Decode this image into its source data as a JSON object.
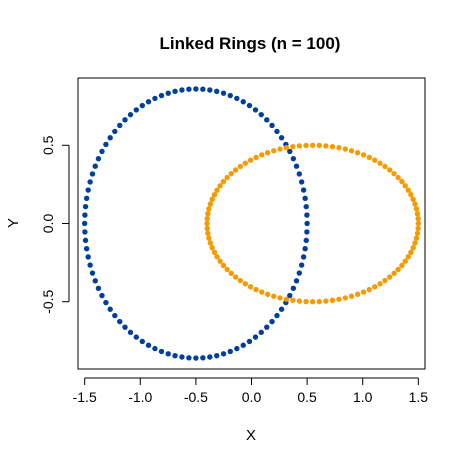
{
  "chart_data": {
    "type": "scatter",
    "title": "Linked Rings (n = 100)",
    "xlabel": "X",
    "ylabel": "Y",
    "xlim": [
      -1.56,
      1.56
    ],
    "ylim": [
      -0.93,
      0.93
    ],
    "x_ticks": [
      -1.5,
      -1.0,
      -0.5,
      0.0,
      0.5,
      1.0,
      1.5
    ],
    "x_tick_labels": [
      "-1.5",
      "-1.0",
      "-0.5",
      "0.0",
      "0.5",
      "1.0",
      "1.5"
    ],
    "y_ticks": [
      -0.5,
      0.0,
      0.5
    ],
    "y_tick_labels": [
      "-0.5",
      "0.0",
      "0.5"
    ],
    "grid": false,
    "legend": "none",
    "series": [
      {
        "color": "#003f9a",
        "points_per_ring": 100,
        "shape": "ellipse",
        "center": [
          -0.5,
          0.0
        ],
        "x_radius": 1.0,
        "y_radius": 0.86
      },
      {
        "color": "#f59b00",
        "points_per_ring": 100,
        "shape": "ellipse",
        "center": [
          0.55,
          0.0
        ],
        "x_radius": 0.95,
        "y_radius": 0.5
      }
    ]
  }
}
